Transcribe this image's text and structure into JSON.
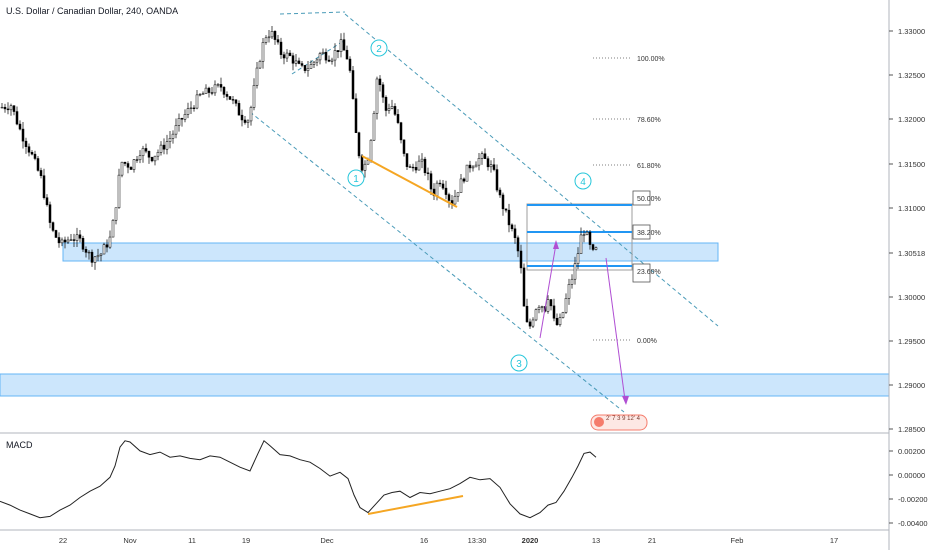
{
  "header": {
    "title": "U.S. Dollar / Canadian Dollar, 240, OANDA"
  },
  "macd": {
    "label": "MACD",
    "ticks": [
      "0.00200",
      "0.00000",
      "-0.00200",
      "-0.00400"
    ],
    "ylim": [
      -0.0045,
      0.0028
    ]
  },
  "price_axis": {
    "ticks": [
      "1.33000",
      "1.32500",
      "1.32000",
      "1.31500",
      "1.31000",
      "1.30000",
      "1.29500",
      "1.29000",
      "1.28500"
    ],
    "current_price_label": "1.30518",
    "ylim": [
      1.2838,
      1.3345
    ]
  },
  "time_axis": {
    "labels": [
      "22",
      "Nov",
      "11",
      "19",
      "Dec",
      "16",
      "13:30",
      "2020",
      "13",
      "21",
      "Feb",
      "17"
    ]
  },
  "fib_levels": [
    {
      "label": "100.00%"
    },
    {
      "label": "78.60%"
    },
    {
      "label": "61.80%"
    },
    {
      "label": "50.00%"
    },
    {
      "label": "38.20%"
    },
    {
      "label": "23.60%"
    },
    {
      "label": "0.00%"
    }
  ],
  "wave_labels": [
    {
      "label": "1"
    },
    {
      "label": "2"
    },
    {
      "label": "3"
    },
    {
      "label": "4"
    }
  ],
  "legend_badge": "2' 7 3 9 12' 4",
  "colors": {
    "candle": "#000000",
    "zone_fill": "#bbdefb",
    "zone_stroke": "#64b5f6",
    "fib_line": "#2196f3",
    "trend_dashed": "#4a9bb8",
    "divergence": "#f5a623",
    "projection": "#b04fd3",
    "wave_label": "#26c6da",
    "badge": "#f57c6c"
  },
  "chart_data": {
    "type": "candlestick",
    "instrument": "U.S. Dollar / Canadian Dollar",
    "timeframe": "240",
    "source": "OANDA",
    "price_range": [
      1.2838,
      1.3345
    ],
    "macd_range": [
      -0.0045,
      0.0028
    ],
    "close_path": [
      [
        0,
        1.3225
      ],
      [
        10,
        1.3228
      ],
      [
        20,
        1.3195
      ],
      [
        30,
        1.317
      ],
      [
        40,
        1.314
      ],
      [
        50,
        1.308
      ],
      [
        60,
        1.306
      ],
      [
        70,
        1.307
      ],
      [
        80,
        1.3065
      ],
      [
        90,
        1.3045
      ],
      [
        100,
        1.305
      ],
      [
        110,
        1.307
      ],
      [
        115,
        1.311
      ],
      [
        120,
        1.316
      ],
      [
        130,
        1.3155
      ],
      [
        140,
        1.3175
      ],
      [
        150,
        1.3165
      ],
      [
        160,
        1.3175
      ],
      [
        170,
        1.319
      ],
      [
        180,
        1.321
      ],
      [
        190,
        1.3225
      ],
      [
        200,
        1.324
      ],
      [
        210,
        1.3245
      ],
      [
        220,
        1.325
      ],
      [
        230,
        1.3235
      ],
      [
        240,
        1.3215
      ],
      [
        248,
        1.321
      ],
      [
        252,
        1.324
      ],
      [
        258,
        1.328
      ],
      [
        264,
        1.331
      ],
      [
        270,
        1.3315
      ],
      [
        280,
        1.329
      ],
      [
        290,
        1.3285
      ],
      [
        300,
        1.327
      ],
      [
        310,
        1.3275
      ],
      [
        320,
        1.329
      ],
      [
        330,
        1.3285
      ],
      [
        340,
        1.33
      ],
      [
        348,
        1.328
      ],
      [
        352,
        1.323
      ],
      [
        356,
        1.318
      ],
      [
        362,
        1.315
      ],
      [
        368,
        1.317
      ],
      [
        372,
        1.321
      ],
      [
        376,
        1.326
      ],
      [
        380,
        1.325
      ],
      [
        384,
        1.322
      ],
      [
        390,
        1.323
      ],
      [
        396,
        1.321
      ],
      [
        402,
        1.317
      ],
      [
        408,
        1.315
      ],
      [
        414,
        1.3155
      ],
      [
        420,
        1.316
      ],
      [
        426,
        1.3145
      ],
      [
        432,
        1.312
      ],
      [
        438,
        1.314
      ],
      [
        444,
        1.313
      ],
      [
        450,
        1.311
      ],
      [
        456,
        1.3125
      ],
      [
        462,
        1.314
      ],
      [
        468,
        1.3155
      ],
      [
        474,
        1.316
      ],
      [
        480,
        1.3165
      ],
      [
        486,
        1.316
      ],
      [
        492,
        1.315
      ],
      [
        498,
        1.312
      ],
      [
        504,
        1.31
      ],
      [
        510,
        1.308
      ],
      [
        516,
        1.306
      ],
      [
        520,
        1.303
      ],
      [
        524,
        1.297
      ],
      [
        528,
        1.296
      ],
      [
        532,
        1.2975
      ],
      [
        536,
        1.299
      ],
      [
        540,
        1.299
      ],
      [
        544,
        1.2985
      ],
      [
        548,
        1.3005
      ],
      [
        552,
        1.297
      ],
      [
        556,
        1.2965
      ],
      [
        560,
        1.297
      ],
      [
        564,
        1.299
      ],
      [
        568,
        1.301
      ],
      [
        572,
        1.3025
      ],
      [
        576,
        1.3045
      ],
      [
        580,
        1.307
      ],
      [
        584,
        1.308
      ],
      [
        588,
        1.306
      ],
      [
        592,
        1.305
      ],
      [
        596,
        1.3055
      ]
    ],
    "macd_path": [
      [
        0,
        -0.0023
      ],
      [
        10,
        -0.0026
      ],
      [
        20,
        -0.003
      ],
      [
        30,
        -0.0033
      ],
      [
        40,
        -0.0036
      ],
      [
        50,
        -0.0035
      ],
      [
        60,
        -0.003
      ],
      [
        70,
        -0.0026
      ],
      [
        80,
        -0.002
      ],
      [
        90,
        -0.0015
      ],
      [
        100,
        -0.0011
      ],
      [
        110,
        -0.0004
      ],
      [
        115,
        0.0005
      ],
      [
        120,
        0.002
      ],
      [
        125,
        0.0025
      ],
      [
        130,
        0.0024
      ],
      [
        140,
        0.0017
      ],
      [
        150,
        0.0014
      ],
      [
        160,
        0.0016
      ],
      [
        170,
        0.0012
      ],
      [
        180,
        0.0013
      ],
      [
        190,
        0.0011
      ],
      [
        200,
        0.001
      ],
      [
        210,
        0.0013
      ],
      [
        220,
        0.0012
      ],
      [
        230,
        0.0008
      ],
      [
        240,
        0.0004
      ],
      [
        250,
        0.0001
      ],
      [
        258,
        0.0015
      ],
      [
        264,
        0.0025
      ],
      [
        270,
        0.0021
      ],
      [
        280,
        0.0014
      ],
      [
        290,
        0.0013
      ],
      [
        300,
        0.001
      ],
      [
        310,
        0.0008
      ],
      [
        320,
        0.0003
      ],
      [
        330,
        -0.0003
      ],
      [
        340,
        0.0
      ],
      [
        348,
        -0.0005
      ],
      [
        354,
        -0.0018
      ],
      [
        360,
        -0.0028
      ],
      [
        368,
        -0.0032
      ],
      [
        376,
        -0.0025
      ],
      [
        384,
        -0.0018
      ],
      [
        392,
        -0.0016
      ],
      [
        400,
        -0.0015
      ],
      [
        410,
        -0.002
      ],
      [
        420,
        -0.0016
      ],
      [
        430,
        -0.0017
      ],
      [
        440,
        -0.0015
      ],
      [
        450,
        -0.0013
      ],
      [
        460,
        -0.0009
      ],
      [
        470,
        -0.0004
      ],
      [
        480,
        -0.0006
      ],
      [
        490,
        -0.0005
      ],
      [
        500,
        -0.0012
      ],
      [
        510,
        -0.0025
      ],
      [
        520,
        -0.0033
      ],
      [
        530,
        -0.0036
      ],
      [
        540,
        -0.0032
      ],
      [
        548,
        -0.0026
      ],
      [
        556,
        -0.0024
      ],
      [
        564,
        -0.0015
      ],
      [
        572,
        -0.0004
      ],
      [
        578,
        0.0005
      ],
      [
        584,
        0.0015
      ],
      [
        590,
        0.0016
      ],
      [
        596,
        0.0012
      ]
    ]
  }
}
